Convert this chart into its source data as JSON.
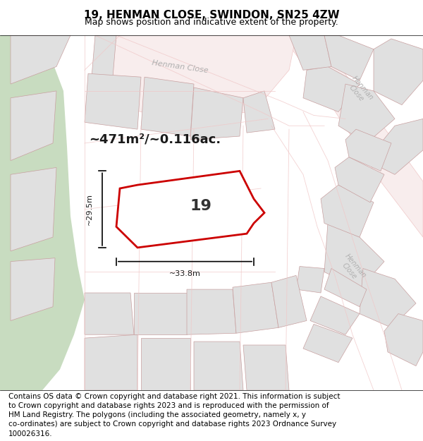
{
  "title": "19, HENMAN CLOSE, SWINDON, SN25 4ZW",
  "subtitle": "Map shows position and indicative extent of the property.",
  "footer_line1": "Contains OS data © Crown copyright and database right 2021. This information is subject",
  "footer_line2": "to Crown copyright and database rights 2023 and is reproduced with the permission of",
  "footer_line3": "HM Land Registry. The polygons (including the associated geometry, namely x, y",
  "footer_line4": "co-ordinates) are subject to Crown copyright and database rights 2023 Ordnance Survey",
  "footer_line5": "100026316.",
  "area_label": "~471m²/~0.116ac.",
  "plot_number": "19",
  "dim_width": "~33.8m",
  "dim_height": "~29.5m",
  "map_bg": "#f5f5f5",
  "plot_outline_color": "#cc0000",
  "road_color": "#f0c8c8",
  "road_fill": "#f5e8e8",
  "block_color": "#e0e0e0",
  "block_outline": "#c8a0a0",
  "green_area_color": "#c8dcc0",
  "road_label_color": "#b0b0b0",
  "title_fontsize": 11,
  "subtitle_fontsize": 9,
  "footer_fontsize": 7.5
}
